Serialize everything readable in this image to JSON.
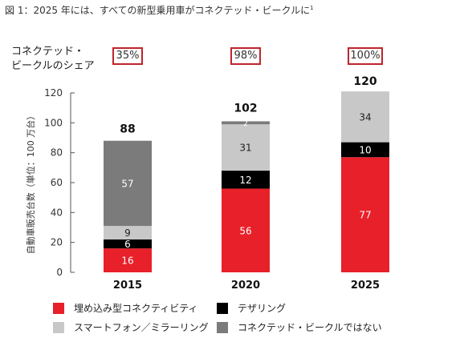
{
  "title": "図 1：2025 年には、すべての新型乗用車がコネクテッド・ビークルに",
  "title_note": "1",
  "share_label": [
    "コネクテッド・",
    "ビークルのシェア"
  ],
  "colors": {
    "embedded": "#e8202a",
    "tethered": "#000000",
    "smartphone": "#c8c8c8",
    "not_connected": "#7b7b7b",
    "share_box": "#c0242b"
  },
  "chart_data": {
    "type": "bar",
    "stacked": true,
    "categories": [
      "2015",
      "2020",
      "2025"
    ],
    "series": [
      {
        "name": "埋め込み型コネクティビティ",
        "key": "embedded",
        "values": [
          16,
          56,
          77
        ]
      },
      {
        "name": "テザリング",
        "key": "tethered",
        "values": [
          6,
          12,
          10
        ]
      },
      {
        "name": "スマートフォン／ミラーリング",
        "key": "smartphone",
        "values": [
          9,
          31,
          34
        ]
      },
      {
        "name": "コネクテッド・ビークルではない",
        "key": "not_connected",
        "values": [
          57,
          2,
          null
        ]
      }
    ],
    "totals": [
      88,
      102,
      120
    ],
    "connected_share": [
      "35%",
      "98%",
      "100%"
    ],
    "ylabel": "自動車販売台数（単位：100 万台）",
    "yticks": [
      0,
      20,
      40,
      60,
      80,
      100,
      120
    ],
    "ylim": [
      0,
      120
    ],
    "grid": false,
    "legend_position": "bottom"
  },
  "legend": [
    {
      "key": "embedded",
      "label": "埋め込み型コネクティビティ"
    },
    {
      "key": "tethered",
      "label": "テザリング"
    },
    {
      "key": "smartphone",
      "label": "スマートフォン／ミラーリング"
    },
    {
      "key": "not_connected",
      "label": "コネクテッド・ビークルではない"
    }
  ]
}
